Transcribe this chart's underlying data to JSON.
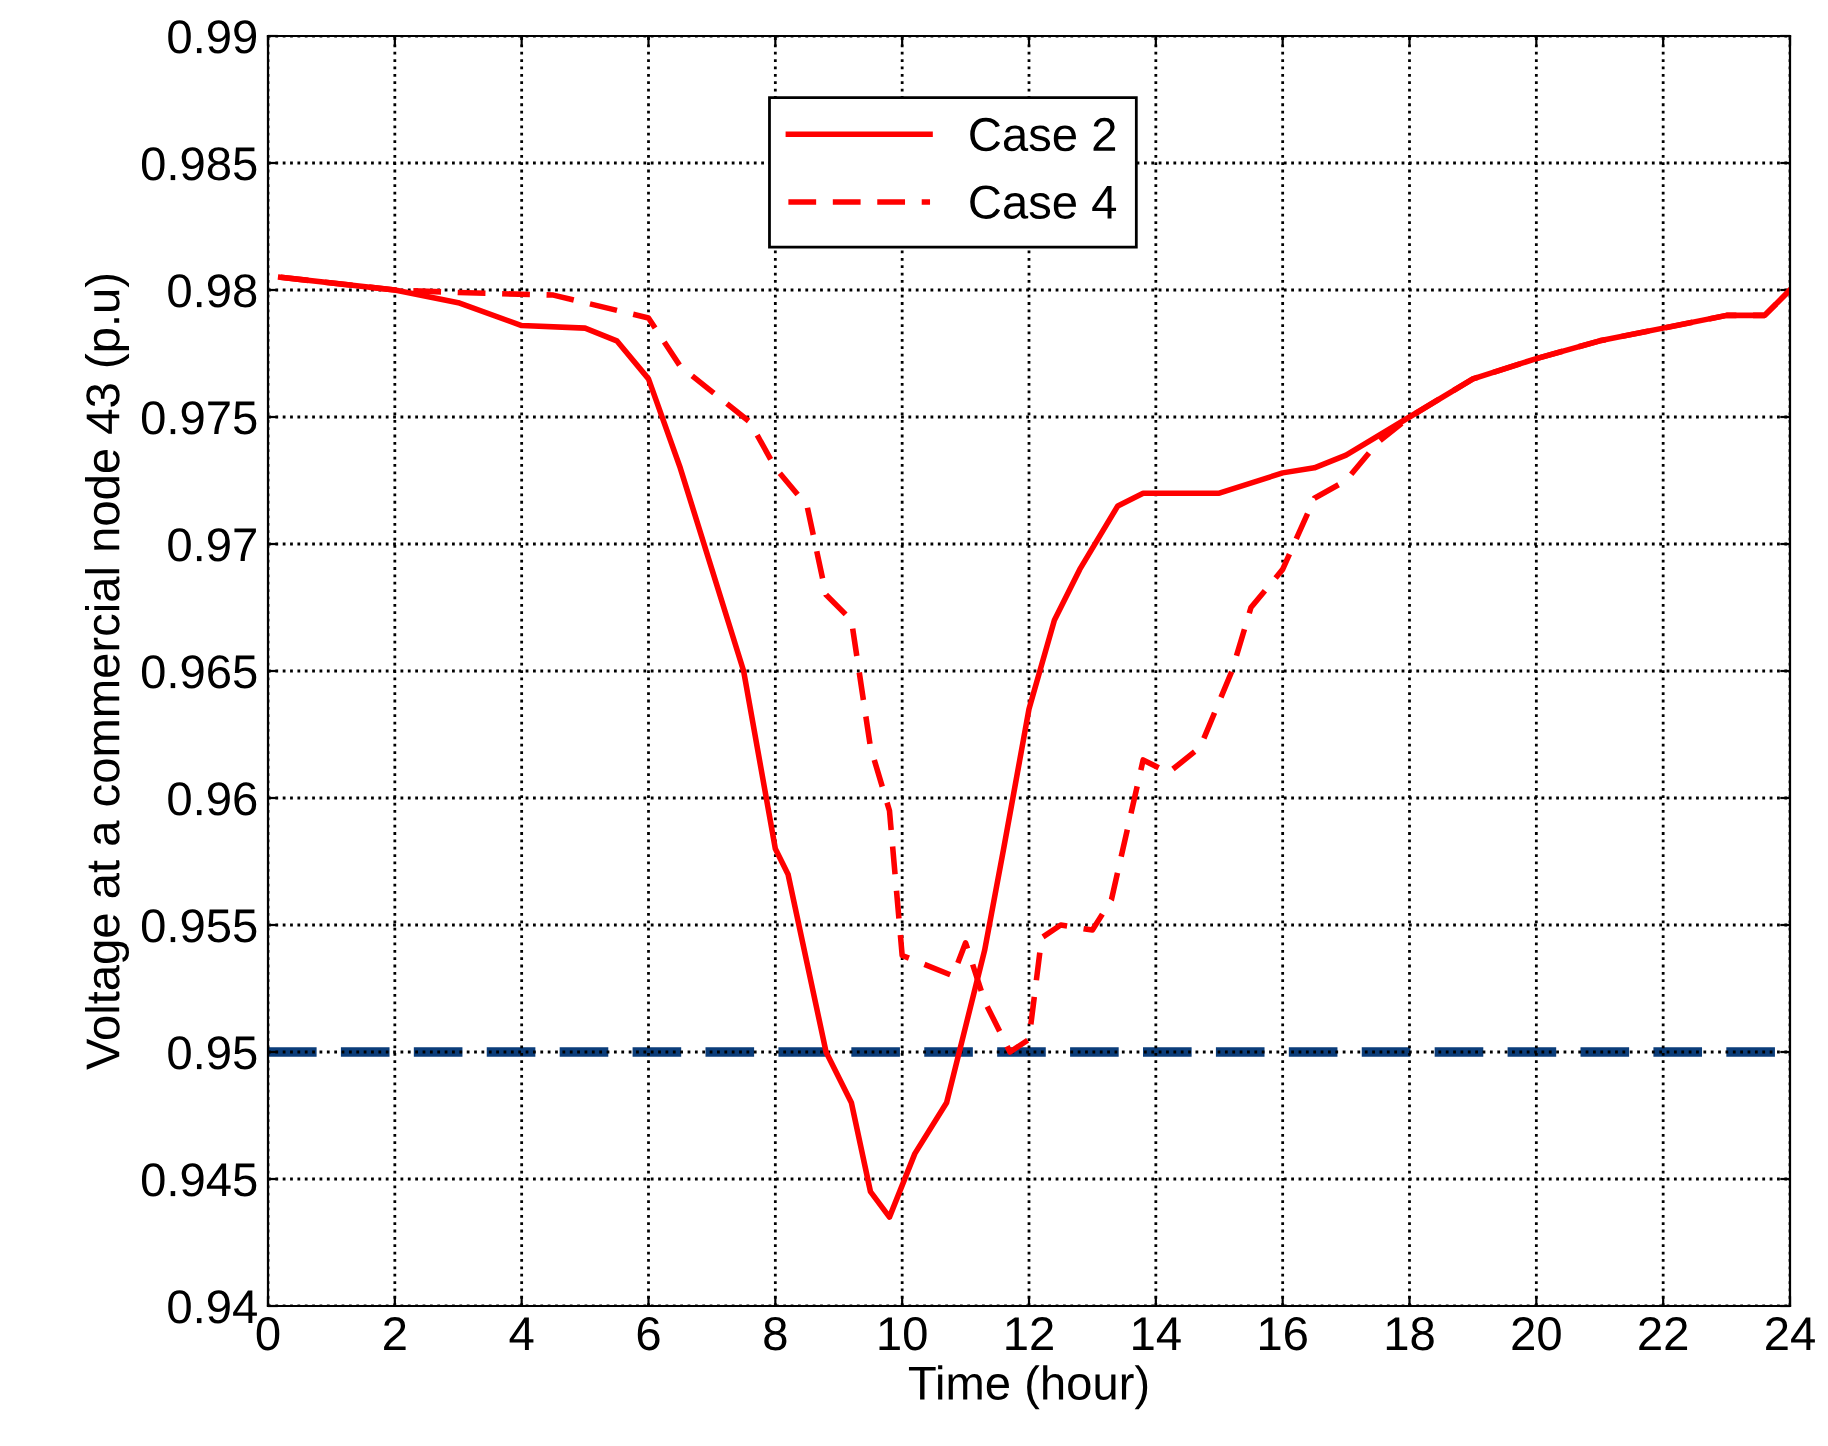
{
  "chart_data": {
    "type": "line",
    "xlabel": "Time (hour)",
    "ylabel": "Voltage at a commercial node 43 (p.u)",
    "xlim": [
      0,
      24
    ],
    "xticks": [
      0,
      2,
      4,
      6,
      8,
      10,
      12,
      14,
      16,
      18,
      20,
      22,
      24
    ],
    "ylim": [
      0.94,
      0.99
    ],
    "yticks": [
      0.94,
      0.945,
      0.95,
      0.955,
      0.96,
      0.965,
      0.97,
      0.975,
      0.98,
      0.985,
      0.99
    ],
    "grid": true,
    "legend": "top",
    "marker": "none",
    "series": [
      {
        "name": "Case 2",
        "color": "#ff0000",
        "line_style": "solid",
        "x": [
          0.2,
          2,
          3,
          4,
          5,
          5.5,
          6,
          6.5,
          7,
          7.5,
          8,
          8.2,
          8.5,
          8.8,
          9.2,
          9.5,
          9.8,
          10.2,
          10.7,
          11,
          11.3,
          11.6,
          12,
          12.4,
          12.8,
          13.4,
          13.8,
          15,
          16,
          16.5,
          17,
          18,
          19,
          20,
          21,
          22,
          23,
          23.6,
          24
        ],
        "values": [
          0.9805,
          0.98,
          0.9795,
          0.9786,
          0.9785,
          0.978,
          0.9765,
          0.973,
          0.969,
          0.965,
          0.958,
          0.957,
          0.9535,
          0.95,
          0.948,
          0.9445,
          0.9435,
          0.946,
          0.948,
          0.951,
          0.954,
          0.958,
          0.9635,
          0.967,
          0.969,
          0.9715,
          0.972,
          0.972,
          0.9728,
          0.973,
          0.9735,
          0.975,
          0.9765,
          0.9773,
          0.978,
          0.9785,
          0.979,
          0.979,
          0.98
        ]
      },
      {
        "name": "Case 4",
        "color": "#ff0000",
        "line_style": "dashed",
        "x": [
          0.2,
          2,
          3,
          4.5,
          5,
          6,
          6.5,
          7,
          7.6,
          8,
          8.5,
          8.8,
          9.2,
          9.5,
          9.8,
          10,
          10.3,
          10.8,
          11,
          11.3,
          11.7,
          12,
          12.2,
          12.5,
          13,
          13.3,
          13.8,
          14.2,
          14.7,
          15.2,
          15.5,
          16,
          16.5,
          17,
          17.5,
          18,
          19,
          20,
          21,
          22,
          23,
          23.6,
          24
        ],
        "values": [
          0.9805,
          0.98,
          0.9799,
          0.9798,
          0.9795,
          0.9789,
          0.977,
          0.976,
          0.9748,
          0.973,
          0.9715,
          0.968,
          0.967,
          0.962,
          0.9595,
          0.9538,
          0.9535,
          0.953,
          0.9543,
          0.952,
          0.95,
          0.9505,
          0.9545,
          0.955,
          0.9548,
          0.956,
          0.9615,
          0.961,
          0.962,
          0.965,
          0.9675,
          0.969,
          0.9718,
          0.9725,
          0.974,
          0.975,
          0.9765,
          0.9773,
          0.978,
          0.9785,
          0.979,
          0.979,
          0.98
        ]
      }
    ],
    "ref_lines": [
      {
        "axis": "y",
        "value": 0.95,
        "color": "#0b3d7a",
        "line_style": "dashed"
      }
    ]
  }
}
